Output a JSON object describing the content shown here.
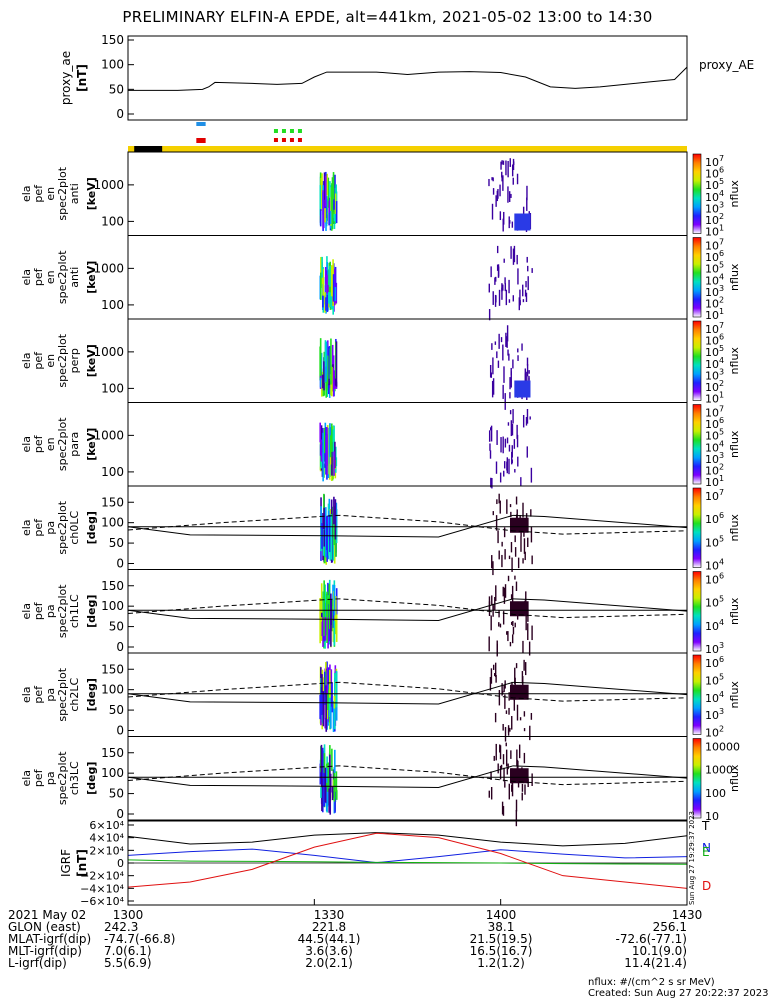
{
  "title": "PRELIMINARY ELFIN-A EPDE, alt=441km, 2021-05-02 13:00 to 14:30",
  "colors": {
    "ae_line": "#000000",
    "state_yellow": "#f5d000",
    "state_black": "#000000",
    "bar_blue": "#1f8fe6",
    "bar_red": "#e00000",
    "bar_green": "#22dd22",
    "igrf_T": "#000000",
    "igrf_N": "#1020e0",
    "igrf_E": "#10b010",
    "igrf_D": "#e01010"
  },
  "colorbar_stops": [
    "#ffffff",
    "#7f00ff",
    "#2020ff",
    "#00a0ff",
    "#00e0c0",
    "#20e020",
    "#c8f000",
    "#ffd000",
    "#ff8000",
    "#ff0000"
  ],
  "chart_data": {
    "type": "multi-panel spectrogram",
    "x_ticks": [
      "1300",
      "1330",
      "1400",
      "1430"
    ],
    "time_range_min": [
      0,
      90
    ],
    "proxy_ae": {
      "ylabel": "proxy_ae",
      "units": "[nT]",
      "legend": "proxy_AE",
      "yticks": [
        "150",
        "100",
        "50",
        "0"
      ],
      "ylim": [
        0,
        150
      ],
      "t": [
        0,
        8,
        12,
        13,
        14,
        20,
        24,
        28,
        30,
        32,
        35,
        40,
        45,
        50,
        55,
        60,
        64,
        68,
        72,
        76,
        80,
        84,
        88,
        90
      ],
      "v": [
        48,
        48,
        50,
        55,
        64,
        62,
        60,
        62,
        75,
        85,
        85,
        85,
        80,
        85,
        86,
        84,
        75,
        55,
        52,
        55,
        60,
        65,
        70,
        95
      ]
    },
    "bars": {
      "blue": [
        11,
        12.5
      ],
      "red_upper": [
        11,
        12.5
      ],
      "green": [
        23.5,
        27.5
      ],
      "red_lower": [
        23.5,
        27.5
      ]
    },
    "state_bar": {
      "black_segment": [
        1,
        5.5
      ]
    },
    "panels": [
      {
        "label": [
          "ela",
          "pef",
          "en",
          "spec2plot",
          "anti"
        ],
        "units": "[keV]",
        "yticks": [
          "1000",
          "100"
        ],
        "cblabel": "nflux",
        "cbticks": [
          "10^7",
          "10^6",
          "10^5",
          "10^4",
          "10^3",
          "10^2",
          "10^1"
        ]
      },
      {
        "label": [
          "ela",
          "pef",
          "en",
          "spec2plot",
          "anti"
        ],
        "units": "[keV]",
        "yticks": [
          "1000",
          "100"
        ],
        "cblabel": "nflux",
        "cbticks": [
          "10^7",
          "10^6",
          "10^5",
          "10^4",
          "10^3",
          "10^2",
          "10^1"
        ]
      },
      {
        "label": [
          "ela",
          "pef",
          "en",
          "spec2plot",
          "perp"
        ],
        "units": "[keV]",
        "yticks": [
          "1000",
          "100"
        ],
        "cblabel": "nflux",
        "cbticks": [
          "10^7",
          "10^6",
          "10^5",
          "10^4",
          "10^3",
          "10^2",
          "10^1"
        ]
      },
      {
        "label": [
          "ela",
          "pef",
          "en",
          "spec2plot",
          "para"
        ],
        "units": "[keV]",
        "yticks": [
          "1000",
          "100"
        ],
        "cblabel": "nflux",
        "cbticks": [
          "10^7",
          "10^6",
          "10^5",
          "10^4",
          "10^3",
          "10^2",
          "10^1"
        ]
      },
      {
        "label": [
          "ela",
          "pef",
          "pa",
          "spec2plot",
          "ch0LC"
        ],
        "units": "[deg]",
        "yticks": [
          "150",
          "100",
          "50",
          "0"
        ],
        "cblabel": "nflux",
        "cbticks": [
          "10^7",
          "10^6",
          "10^5",
          "10^4"
        ]
      },
      {
        "label": [
          "ela",
          "pef",
          "pa",
          "spec2plot",
          "ch1LC"
        ],
        "units": "[deg]",
        "yticks": [
          "150",
          "100",
          "50",
          "0"
        ],
        "cblabel": "nflux",
        "cbticks": [
          "10^6",
          "10^5",
          "10^4",
          "10^3"
        ]
      },
      {
        "label": [
          "ela",
          "pef",
          "pa",
          "spec2plot",
          "ch2LC"
        ],
        "units": "[deg]",
        "yticks": [
          "150",
          "100",
          "50",
          "0"
        ],
        "cblabel": "nflux",
        "cbticks": [
          "10^6",
          "10^5",
          "10^4",
          "10^3",
          "10^2"
        ]
      },
      {
        "label": [
          "ela",
          "pef",
          "pa",
          "spec2plot",
          "ch3LC"
        ],
        "units": "[deg]",
        "yticks": [
          "150",
          "100",
          "50",
          "0"
        ],
        "cblabel": "nflux",
        "cbticks": [
          "10000",
          "1000",
          "100",
          "10"
        ]
      }
    ],
    "igrf": {
      "ylabel": "IGRF",
      "units": "[nT]",
      "yticks": [
        "6×10⁴",
        "4×10⁴",
        "2×10⁴",
        "0",
        "−2×10⁴",
        "−4×10⁴",
        "−6×10⁴"
      ],
      "ylim": [
        -60000,
        60000
      ],
      "legend": [
        "T",
        "N",
        "E",
        "D"
      ],
      "t": [
        0,
        10,
        20,
        30,
        40,
        50,
        60,
        70,
        80,
        90
      ],
      "T": [
        42000,
        30000,
        33000,
        44000,
        48000,
        44000,
        33000,
        27000,
        31000,
        43000
      ],
      "N": [
        12000,
        18000,
        22000,
        12000,
        500,
        10000,
        21000,
        14000,
        8000,
        10000
      ],
      "E": [
        5000,
        3000,
        2500,
        2000,
        1000,
        500,
        0,
        -1000,
        -1500,
        -2000
      ],
      "D": [
        -38000,
        -30000,
        -10000,
        25000,
        47000,
        40000,
        15000,
        -20000,
        -30000,
        -40000
      ]
    }
  },
  "side_stamp": "Sun Aug 27 19:29:37 2023",
  "ephem": {
    "row0": {
      "label": "2021 May 02",
      "values": [
        "1300",
        "1330",
        "1400",
        "1430"
      ]
    },
    "rows": [
      {
        "label": "GLON (east)",
        "values": [
          "242.3",
          "221.8",
          "38.1",
          "256.1"
        ]
      },
      {
        "label": "MLAT-igrf(dip)",
        "values": [
          "-74.7(-66.8)",
          "44.5(44.1)",
          "21.5(19.5)",
          "-72.6(-77.1)"
        ]
      },
      {
        "label": "MLT-igrf(dip)",
        "values": [
          "7.0(6.1)",
          "3.6(3.6)",
          "16.5(16.7)",
          "10.1(9.0)"
        ]
      },
      {
        "label": "L-igrf(dip)",
        "values": [
          "5.5(6.9)",
          "2.0(2.1)",
          "1.2(1.2)",
          "11.4(21.4)"
        ]
      }
    ]
  },
  "footer": {
    "units_note": "nflux: #/(cm^2 s sr MeV)",
    "created": "Created: Sun Aug 27 20:22:37 2023"
  }
}
